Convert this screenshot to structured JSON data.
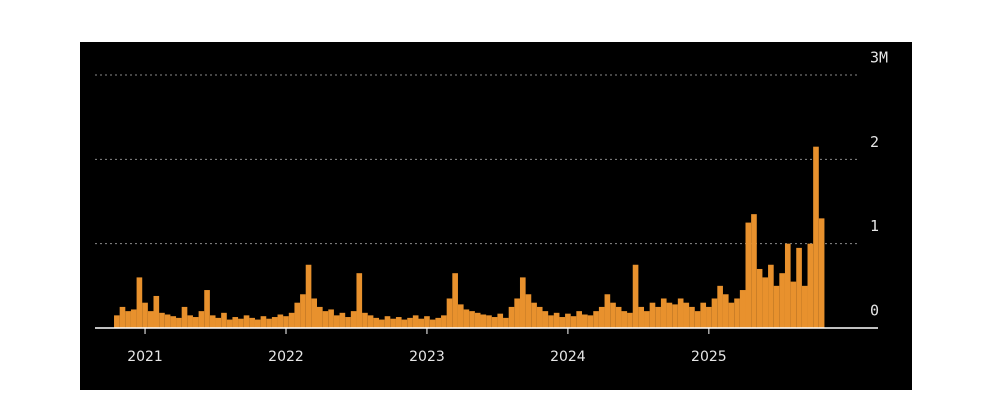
{
  "chart_data": {
    "type": "bar",
    "color": "#e8912d",
    "grid": true,
    "xlim": [
      2020.645,
      2026.2
    ],
    "xticks": [
      2021,
      2022,
      2023,
      2024,
      2025
    ],
    "ylim": [
      0,
      3000000
    ],
    "yticks": [
      0,
      {
        "value": 1000000,
        "label": "1"
      },
      {
        "value": 2000000,
        "label": "2"
      },
      {
        "value": 3000000,
        "label": "3M"
      }
    ],
    "x": [
      2020.8,
      2020.84,
      2020.88,
      2020.92,
      2020.96,
      2021.0,
      2021.04,
      2021.08,
      2021.12,
      2021.16,
      2021.2,
      2021.24,
      2021.28,
      2021.32,
      2021.36,
      2021.4,
      2021.44,
      2021.48,
      2021.52,
      2021.56,
      2021.6,
      2021.64,
      2021.68,
      2021.72,
      2021.76,
      2021.8,
      2021.84,
      2021.88,
      2021.92,
      2021.96,
      2022.0,
      2022.04,
      2022.08,
      2022.12,
      2022.16,
      2022.2,
      2022.24,
      2022.28,
      2022.32,
      2022.36,
      2022.4,
      2022.44,
      2022.48,
      2022.52,
      2022.56,
      2022.6,
      2022.64,
      2022.68,
      2022.72,
      2022.76,
      2022.8,
      2022.84,
      2022.88,
      2022.92,
      2022.96,
      2023.0,
      2023.04,
      2023.08,
      2023.12,
      2023.16,
      2023.2,
      2023.24,
      2023.28,
      2023.32,
      2023.36,
      2023.4,
      2023.44,
      2023.48,
      2023.52,
      2023.56,
      2023.6,
      2023.64,
      2023.68,
      2023.72,
      2023.76,
      2023.8,
      2023.84,
      2023.88,
      2023.92,
      2023.96,
      2024.0,
      2024.04,
      2024.08,
      2024.12,
      2024.16,
      2024.2,
      2024.24,
      2024.28,
      2024.32,
      2024.36,
      2024.4,
      2024.44,
      2024.48,
      2024.52,
      2024.56,
      2024.6,
      2024.64,
      2024.68,
      2024.72,
      2024.76,
      2024.8,
      2024.84,
      2024.88,
      2024.92,
      2024.96,
      2025.0,
      2025.04,
      2025.08,
      2025.12,
      2025.16,
      2025.2,
      2025.24,
      2025.28,
      2025.32,
      2025.36,
      2025.4,
      2025.44,
      2025.48,
      2025.52,
      2025.56,
      2025.6,
      2025.64,
      2025.68,
      2025.72,
      2025.76,
      2025.8
    ],
    "values": [
      150000,
      250000,
      200000,
      220000,
      600000,
      300000,
      200000,
      380000,
      180000,
      160000,
      140000,
      120000,
      250000,
      150000,
      130000,
      200000,
      450000,
      150000,
      120000,
      180000,
      100000,
      130000,
      110000,
      150000,
      120000,
      100000,
      140000,
      110000,
      130000,
      160000,
      140000,
      180000,
      300000,
      400000,
      750000,
      350000,
      250000,
      200000,
      220000,
      150000,
      180000,
      130000,
      200000,
      650000,
      180000,
      150000,
      120000,
      100000,
      140000,
      110000,
      130000,
      100000,
      120000,
      150000,
      110000,
      140000,
      100000,
      120000,
      150000,
      350000,
      650000,
      280000,
      220000,
      200000,
      180000,
      160000,
      150000,
      130000,
      170000,
      120000,
      250000,
      350000,
      600000,
      400000,
      300000,
      250000,
      200000,
      150000,
      180000,
      130000,
      170000,
      140000,
      200000,
      160000,
      150000,
      200000,
      250000,
      400000,
      300000,
      250000,
      200000,
      180000,
      750000,
      250000,
      200000,
      300000,
      250000,
      350000,
      300000,
      280000,
      350000,
      300000,
      250000,
      200000,
      300000,
      250000,
      350000,
      500000,
      400000,
      300000,
      350000,
      450000,
      1250000,
      1350000,
      700000,
      600000,
      750000,
      500000,
      650000,
      1000000,
      550000,
      950000,
      500000,
      1000000,
      2150000,
      1300000
    ]
  }
}
